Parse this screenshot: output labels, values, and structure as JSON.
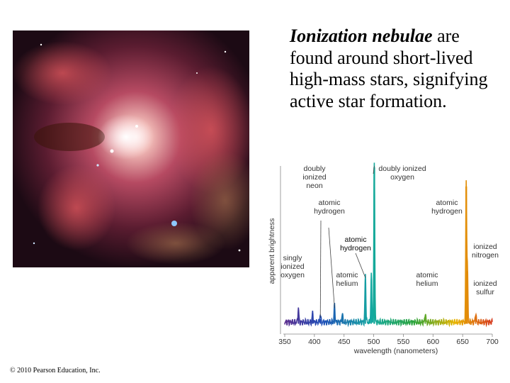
{
  "caption": {
    "term": "Ionization nebulae",
    "rest": " are found around short-lived high-mass stars, signifying active star formation."
  },
  "copyright": "© 2010 Pearson Education, Inc.",
  "chart_data": {
    "type": "line",
    "title": "",
    "xlabel": "wavelength (nanometers)",
    "ylabel": "apparent brightness",
    "xlim": [
      350,
      700
    ],
    "xticks": [
      350,
      400,
      450,
      500,
      550,
      600,
      650,
      700
    ],
    "grid": false,
    "series": [
      {
        "baseline": 0.03,
        "lines": [
          {
            "x": 373,
            "y": 0.09,
            "label": [
              "singly",
              "ionized",
              "oxygen"
            ]
          },
          {
            "x": 397,
            "y": 0.06,
            "label": [
              "doubly",
              "ionized",
              "neon"
            ]
          },
          {
            "x": 410,
            "y": 0.05,
            "label": [
              "atomic",
              "hydrogen"
            ]
          },
          {
            "x": 434,
            "y": 0.11,
            "label": [
              "atomic",
              "hydrogen"
            ]
          },
          {
            "x": 447,
            "y": 0.06,
            "label": [
              "atomic",
              "helium"
            ]
          },
          {
            "x": 486,
            "y": 0.3,
            "label": [
              "atomic",
              "hydrogen"
            ]
          },
          {
            "x": 496,
            "y": 0.3,
            "label": []
          },
          {
            "x": 501,
            "y": 1.0,
            "label": [
              "doubly ionized",
              "oxygen"
            ]
          },
          {
            "x": 587,
            "y": 0.06,
            "label": [
              "atomic",
              "helium"
            ]
          },
          {
            "x": 656,
            "y": 0.88,
            "label": [
              "atomic",
              "hydrogen"
            ]
          },
          {
            "x": 658,
            "y": 0.35,
            "label": [
              "ionized",
              "nitrogen"
            ]
          },
          {
            "x": 672,
            "y": 0.06,
            "label": [
              "ionized",
              "sulfur"
            ]
          }
        ]
      }
    ]
  },
  "colors": {
    "spectrum_start": "#5b2d8e",
    "spectrum_blue": "#1f4fb8",
    "spectrum_cyan": "#14a9a0",
    "spectrum_green": "#2aa43c",
    "spectrum_yellow": "#e8b400",
    "spectrum_red": "#d63a1e",
    "pointer": "#444444"
  }
}
